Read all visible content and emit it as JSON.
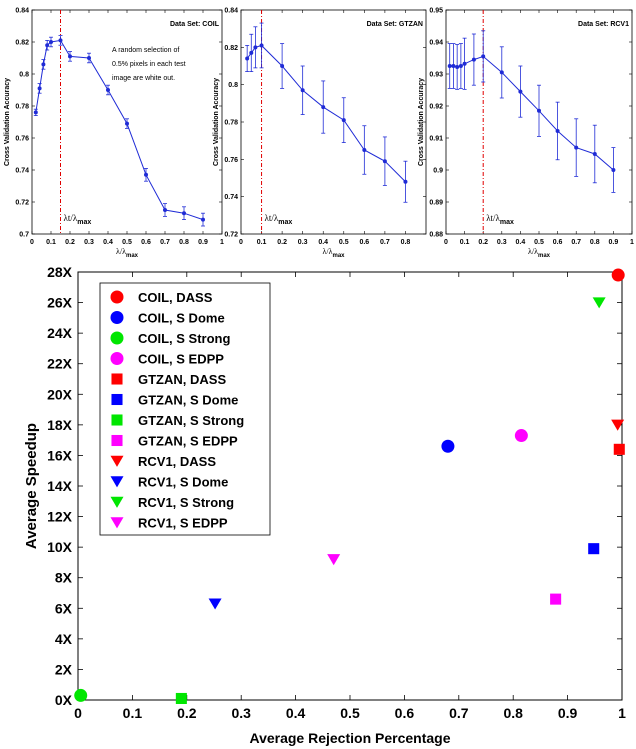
{
  "chart_data": [
    {
      "type": "line",
      "annotation_title": "Data Set: COIL",
      "note_lines": [
        "A random selection of",
        "0.5% pixels in each test",
        "image are white out."
      ],
      "ylabel": "Cross Validation Accuracy",
      "xlabel": "λ/λmax",
      "xlabel_main": "λ/λ",
      "xlabel_sub": "max",
      "marker_label_main": "λt/λ",
      "marker_label_sub": "max",
      "xlim": [
        0,
        1
      ],
      "ylim": [
        0.7,
        0.84
      ],
      "xticks": [
        "0",
        "0.1",
        "0.2",
        "0.3",
        "0.4",
        "0.5",
        "0.6",
        "0.7",
        "0.8",
        "0.9",
        "1"
      ],
      "yticks": [
        "0.7",
        "0.72",
        "0.74",
        "0.76",
        "0.78",
        "0.8",
        "0.82",
        "0.84"
      ],
      "ytick_values": [
        0.7,
        0.72,
        0.74,
        0.76,
        0.78,
        0.8,
        0.82,
        0.84
      ],
      "xtick_values": [
        0,
        0.1,
        0.2,
        0.3,
        0.4,
        0.5,
        0.6,
        0.7,
        0.8,
        0.9,
        1
      ],
      "vline": 0.15,
      "x": [
        0.02,
        0.04,
        0.06,
        0.08,
        0.1,
        0.15,
        0.2,
        0.3,
        0.4,
        0.5,
        0.6,
        0.7,
        0.8,
        0.9
      ],
      "y": [
        0.776,
        0.791,
        0.806,
        0.818,
        0.82,
        0.821,
        0.811,
        0.81,
        0.79,
        0.769,
        0.737,
        0.715,
        0.713,
        0.709
      ],
      "err": [
        0.002,
        0.003,
        0.003,
        0.003,
        0.003,
        0.003,
        0.003,
        0.003,
        0.003,
        0.003,
        0.004,
        0.004,
        0.004,
        0.004
      ]
    },
    {
      "type": "line",
      "annotation_title": "Data Set: GTZAN",
      "ylabel": "Cross Validation Accuracy",
      "xlabel": "λ/λmax",
      "xlabel_main": "λ/λ",
      "xlabel_sub": "max",
      "marker_label_main": "λt/λ",
      "marker_label_sub": "max",
      "xlim": [
        0,
        0.9
      ],
      "ylim": [
        0.72,
        0.84
      ],
      "xticks": [
        "0",
        "0.1",
        "0.2",
        "0.3",
        "0.4",
        "0.5",
        "0.6",
        "0.7",
        "0.8"
      ],
      "xtick_values": [
        0,
        0.1,
        0.2,
        0.3,
        0.4,
        0.5,
        0.6,
        0.7,
        0.8
      ],
      "yticks": [
        "0.72",
        "0.74",
        "0.76",
        "0.78",
        "0.8",
        "0.82",
        "0.84"
      ],
      "ytick_values": [
        0.72,
        0.74,
        0.76,
        0.78,
        0.8,
        0.82,
        0.84
      ],
      "vline": 0.1,
      "x": [
        0.03,
        0.05,
        0.07,
        0.1,
        0.2,
        0.3,
        0.4,
        0.5,
        0.6,
        0.7,
        0.8
      ],
      "y": [
        0.814,
        0.817,
        0.82,
        0.821,
        0.81,
        0.797,
        0.788,
        0.781,
        0.765,
        0.759,
        0.748
      ],
      "err": [
        0.007,
        0.01,
        0.011,
        0.012,
        0.012,
        0.013,
        0.014,
        0.012,
        0.013,
        0.013,
        0.011
      ]
    },
    {
      "type": "line",
      "annotation_title": "Data Set: RCV1",
      "ylabel": "Cross Validation Accuracy",
      "xlabel": "λ/λmax",
      "xlabel_main": "λ/λ",
      "xlabel_sub": "max",
      "marker_label_main": "λt/λ",
      "marker_label_sub": "max",
      "xlim": [
        0,
        1
      ],
      "ylim": [
        0.88,
        0.95
      ],
      "xticks": [
        "0",
        "0.1",
        "0.2",
        "0.3",
        "0.4",
        "0.5",
        "0.6",
        "0.7",
        "0.8",
        "0.9",
        "1"
      ],
      "xtick_values": [
        0,
        0.1,
        0.2,
        0.3,
        0.4,
        0.5,
        0.6,
        0.7,
        0.8,
        0.9,
        1
      ],
      "yticks": [
        "0.88",
        "0.89",
        "0.9",
        "0.91",
        "0.92",
        "0.93",
        "0.94",
        "0.95"
      ],
      "ytick_values": [
        0.88,
        0.89,
        0.9,
        0.91,
        0.92,
        0.93,
        0.94,
        0.95
      ],
      "vline": 0.2,
      "x": [
        0.02,
        0.04,
        0.06,
        0.08,
        0.1,
        0.15,
        0.2,
        0.3,
        0.4,
        0.5,
        0.6,
        0.7,
        0.8,
        0.9
      ],
      "y": [
        0.9325,
        0.9325,
        0.9322,
        0.9325,
        0.9332,
        0.9345,
        0.9355,
        0.9305,
        0.9245,
        0.9185,
        0.9122,
        0.907,
        0.905,
        0.9
      ],
      "err": [
        0.007,
        0.007,
        0.007,
        0.007,
        0.008,
        0.008,
        0.008,
        0.008,
        0.008,
        0.008,
        0.009,
        0.009,
        0.009,
        0.007
      ]
    },
    {
      "type": "scatter",
      "xlabel": "Average Rejection Percentage",
      "ylabel": "Average Speedup",
      "xlim": [
        0,
        1
      ],
      "ylim": [
        0,
        28
      ],
      "xticks": [
        "0",
        "0.1",
        "0.2",
        "0.3",
        "0.4",
        "0.5",
        "0.6",
        "0.7",
        "0.8",
        "0.9",
        "1"
      ],
      "xtick_values": [
        0,
        0.1,
        0.2,
        0.3,
        0.4,
        0.5,
        0.6,
        0.7,
        0.8,
        0.9,
        1
      ],
      "yticks": [
        "0X",
        "2X",
        "4X",
        "6X",
        "8X",
        "10X",
        "12X",
        "14X",
        "16X",
        "18X",
        "20X",
        "22X",
        "24X",
        "26X",
        "28X"
      ],
      "ytick_values": [
        0,
        2,
        4,
        6,
        8,
        10,
        12,
        14,
        16,
        18,
        20,
        22,
        24,
        26,
        28
      ],
      "legend_position": "top-left",
      "series": [
        {
          "name": "COIL, DASS",
          "color": "#ff0000",
          "marker": "circle",
          "x": 0.993,
          "y": 27.8
        },
        {
          "name": "COIL, S Dome",
          "color": "#0000ff",
          "marker": "circle",
          "x": 0.68,
          "y": 16.6
        },
        {
          "name": "COIL, S Strong",
          "color": "#00e600",
          "marker": "circle",
          "x": 0.005,
          "y": 0.3
        },
        {
          "name": "COIL, S EDPP",
          "color": "#ff00ff",
          "marker": "circle",
          "x": 0.815,
          "y": 17.3
        },
        {
          "name": "GTZAN, DASS",
          "color": "#ff0000",
          "marker": "square",
          "x": 0.995,
          "y": 16.4
        },
        {
          "name": "GTZAN, S Dome",
          "color": "#0000ff",
          "marker": "square",
          "x": 0.948,
          "y": 9.9
        },
        {
          "name": "GTZAN, S Strong",
          "color": "#00e600",
          "marker": "square",
          "x": 0.19,
          "y": 0.1
        },
        {
          "name": "GTZAN, S EDPP",
          "color": "#ff00ff",
          "marker": "square",
          "x": 0.878,
          "y": 6.6
        },
        {
          "name": "RCV1, DASS",
          "color": "#ff0000",
          "marker": "triangle-down",
          "x": 0.992,
          "y": 18.0
        },
        {
          "name": "RCV1, S Dome",
          "color": "#0000ff",
          "marker": "triangle-down",
          "x": 0.252,
          "y": 6.3
        },
        {
          "name": "RCV1, S Strong",
          "color": "#00e600",
          "marker": "triangle-down",
          "x": 0.958,
          "y": 26.0
        },
        {
          "name": "RCV1, S EDPP",
          "color": "#ff00ff",
          "marker": "triangle-down",
          "x": 0.47,
          "y": 9.2
        }
      ]
    }
  ]
}
